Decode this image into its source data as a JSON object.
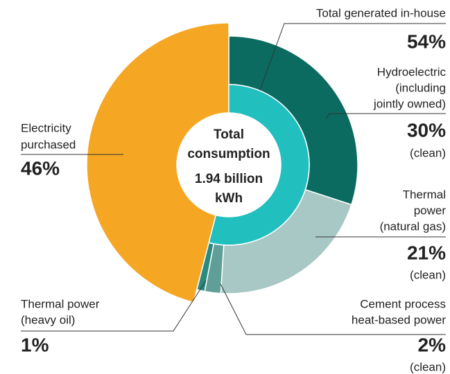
{
  "chart_data": {
    "type": "donut",
    "center_text": [
      "Total",
      "consumption",
      "1.94 billion",
      "kWh"
    ],
    "inner": {
      "name": "Total generated in-house",
      "value": 54,
      "value_label": "54%",
      "color": "#22bfbf"
    },
    "segments": [
      {
        "name_lines": [
          "Hydroelectric",
          "(including",
          "jointly owned)"
        ],
        "value": 30,
        "value_label": "30%",
        "note": "(clean)",
        "color": "#0b6b60"
      },
      {
        "name_lines": [
          "Thermal",
          "power",
          "(natural gas)"
        ],
        "value": 21,
        "value_label": "21%",
        "note": "(clean)",
        "color": "#a8c8c5"
      },
      {
        "name_lines": [
          "Cement process",
          "heat-based power"
        ],
        "value": 2,
        "value_label": "2%",
        "note": "(clean)",
        "color": "#5f9f97"
      },
      {
        "name_lines": [
          "Thermal power",
          "(heavy oil)"
        ],
        "value": 1,
        "value_label": "1%",
        "color": "#2a8a80"
      },
      {
        "name_lines": [
          "Electricity",
          "purchased"
        ],
        "value": 46,
        "value_label": "46%",
        "color": "#f5a623"
      }
    ]
  }
}
